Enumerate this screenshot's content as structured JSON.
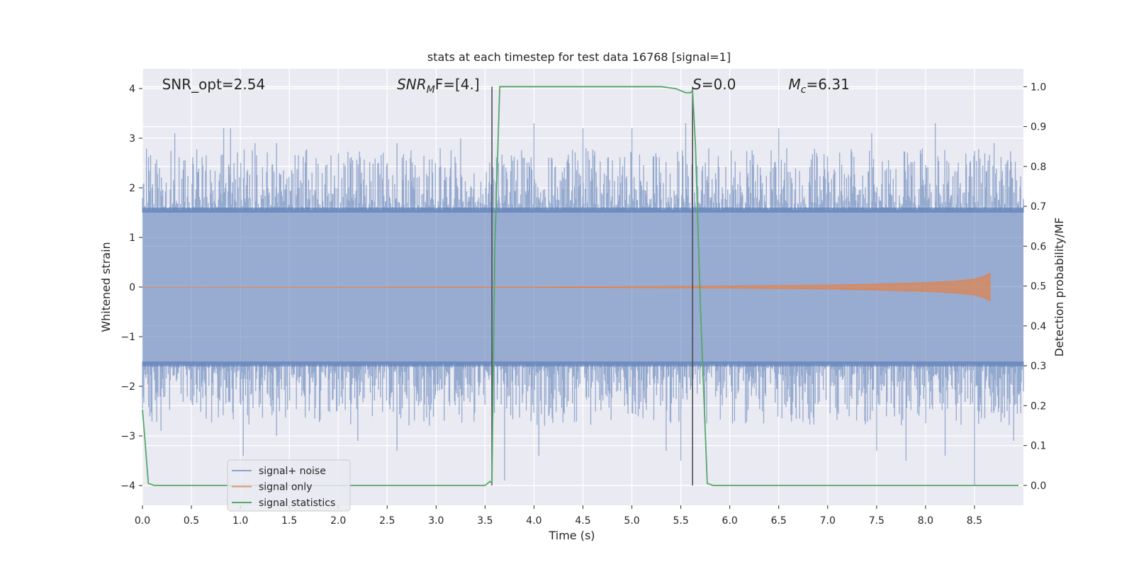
{
  "chart_data": {
    "type": "line",
    "title": "stats at each timestep for test data 16768 [signal=1]",
    "xlabel": "Time (s)",
    "ylabel": "Whitened strain",
    "y2label": "Detection probability/MF",
    "xlim": [
      0.0,
      9.0
    ],
    "ylim": [
      -4.4,
      4.4
    ],
    "y2lim": [
      -0.05,
      1.045
    ],
    "grid": true,
    "x_ticks": [
      0.0,
      0.5,
      1.0,
      1.5,
      2.0,
      2.5,
      3.0,
      3.5,
      4.0,
      4.5,
      5.0,
      5.5,
      6.0,
      6.5,
      7.0,
      7.5,
      8.0,
      8.5
    ],
    "x_tick_labels": [
      "0.0",
      "0.5",
      "1.0",
      "1.5",
      "2.0",
      "2.5",
      "3.0",
      "3.5",
      "4.0",
      "4.5",
      "5.0",
      "5.5",
      "6.0",
      "6.5",
      "7.0",
      "7.5",
      "8.0",
      "8.5"
    ],
    "y_ticks": [
      -4,
      -3,
      -2,
      -1,
      0,
      1,
      2,
      3,
      4
    ],
    "y_tick_labels": [
      "−4",
      "−3",
      "−2",
      "−1",
      "0",
      "1",
      "2",
      "3",
      "4"
    ],
    "y2_ticks": [
      0.0,
      0.1,
      0.2,
      0.3,
      0.4,
      0.5,
      0.6,
      0.7,
      0.8,
      0.9,
      1.0
    ],
    "y2_tick_labels": [
      "0.0",
      "0.1",
      "0.2",
      "0.3",
      "0.4",
      "0.5",
      "0.6",
      "0.7",
      "0.8",
      "0.9",
      "1.0"
    ],
    "annotations": [
      {
        "text": "SNR_opt=2.54",
        "x": 0.2,
        "y": 4.0
      },
      {
        "base": "SNR",
        "sub": "M",
        "rest": "F=[4.]",
        "x": 2.6,
        "y": 4.0
      },
      {
        "base": "S",
        "sub": "",
        "rest": "=0.0",
        "x": 5.62,
        "y": 4.0
      },
      {
        "base": "M",
        "sub": "c",
        "rest": "=6.31",
        "x": 6.6,
        "y": 4.0
      }
    ],
    "legend": {
      "position": "lower-left",
      "entries": [
        "signal+ noise",
        "signal only",
        "signal statistics"
      ]
    },
    "series": [
      {
        "name": "signal+ noise",
        "color": "#4c72b0",
        "style": "dense-noise",
        "x_range": [
          0.0,
          9.0
        ],
        "band": 1.6,
        "peaks_x": [
          0.33,
          0.83,
          0.9,
          1.15,
          1.37,
          2.6,
          3.25,
          4.0,
          4.5,
          5.0,
          5.55,
          6.5,
          7.45,
          8.1,
          8.7
        ],
        "peaks_y": [
          3.1,
          3.2,
          3.2,
          2.9,
          2.9,
          2.9,
          3.0,
          3.3,
          3.2,
          3.2,
          3.3,
          3.2,
          3.1,
          3.3,
          2.9
        ],
        "troughs_x": [
          0.19,
          1.03,
          1.37,
          2.2,
          2.6,
          3.7,
          4.05,
          5.35,
          5.5,
          7.5,
          7.8,
          8.2,
          8.5,
          8.9
        ],
        "troughs_y": [
          -2.9,
          -3.4,
          -3.0,
          -3.1,
          -3.3,
          -3.9,
          -3.4,
          -3.3,
          -3.5,
          -3.3,
          -3.5,
          -3.4,
          -4.0,
          -3.1
        ]
      },
      {
        "name": "signal only",
        "color": "#dd8452",
        "x": [
          0.0,
          4.0,
          5.0,
          6.0,
          6.5,
          7.0,
          7.5,
          8.0,
          8.3,
          8.5,
          8.6,
          8.66
        ],
        "amplitude": [
          0.0,
          0.005,
          0.01,
          0.02,
          0.03,
          0.04,
          0.06,
          0.09,
          0.12,
          0.16,
          0.22,
          0.28
        ]
      },
      {
        "name": "signal statistics",
        "color": "#55a868",
        "x": [
          0.0,
          0.02,
          0.06,
          0.12,
          3.45,
          3.5,
          3.55,
          3.57,
          3.6,
          3.65,
          5.3,
          5.45,
          5.55,
          5.6,
          5.62,
          5.65,
          5.7,
          5.77,
          5.83,
          8.95
        ],
        "y": [
          0.19,
          0.13,
          0.005,
          0.0,
          0.0,
          0.0,
          0.01,
          0.005,
          0.6,
          1.0,
          1.0,
          0.995,
          0.985,
          0.985,
          0.99,
          0.85,
          0.45,
          0.005,
          0.0,
          0.0
        ]
      }
    ],
    "vertical_lines": [
      {
        "x": 3.57,
        "y_from": 0.0,
        "y_to": 1.0
      },
      {
        "x": 5.62,
        "y_from": 0.0,
        "y_to": 1.0
      }
    ]
  }
}
